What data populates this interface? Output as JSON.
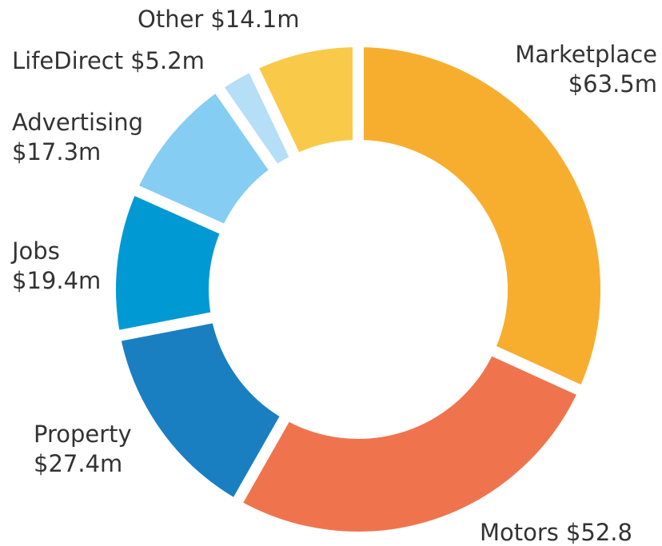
{
  "chart_data": {
    "type": "donut",
    "categories": [
      "Marketplace",
      "Motors",
      "Property",
      "Jobs",
      "Advertising",
      "LifeDirect",
      "Other"
    ],
    "values": [
      63.5,
      52.8,
      27.4,
      19.4,
      17.3,
      5.2,
      14.1
    ],
    "value_labels": [
      "$63.5m",
      "$52.8",
      "$27.4m",
      "$19.4m",
      "$17.3m",
      "$5.2m",
      "$14.1m"
    ],
    "colors": [
      "#f7ae2f",
      "#ef744e",
      "#1a7fc1",
      "#0099d4",
      "#86cdf3",
      "#b5def7",
      "#f9c94a"
    ]
  }
}
